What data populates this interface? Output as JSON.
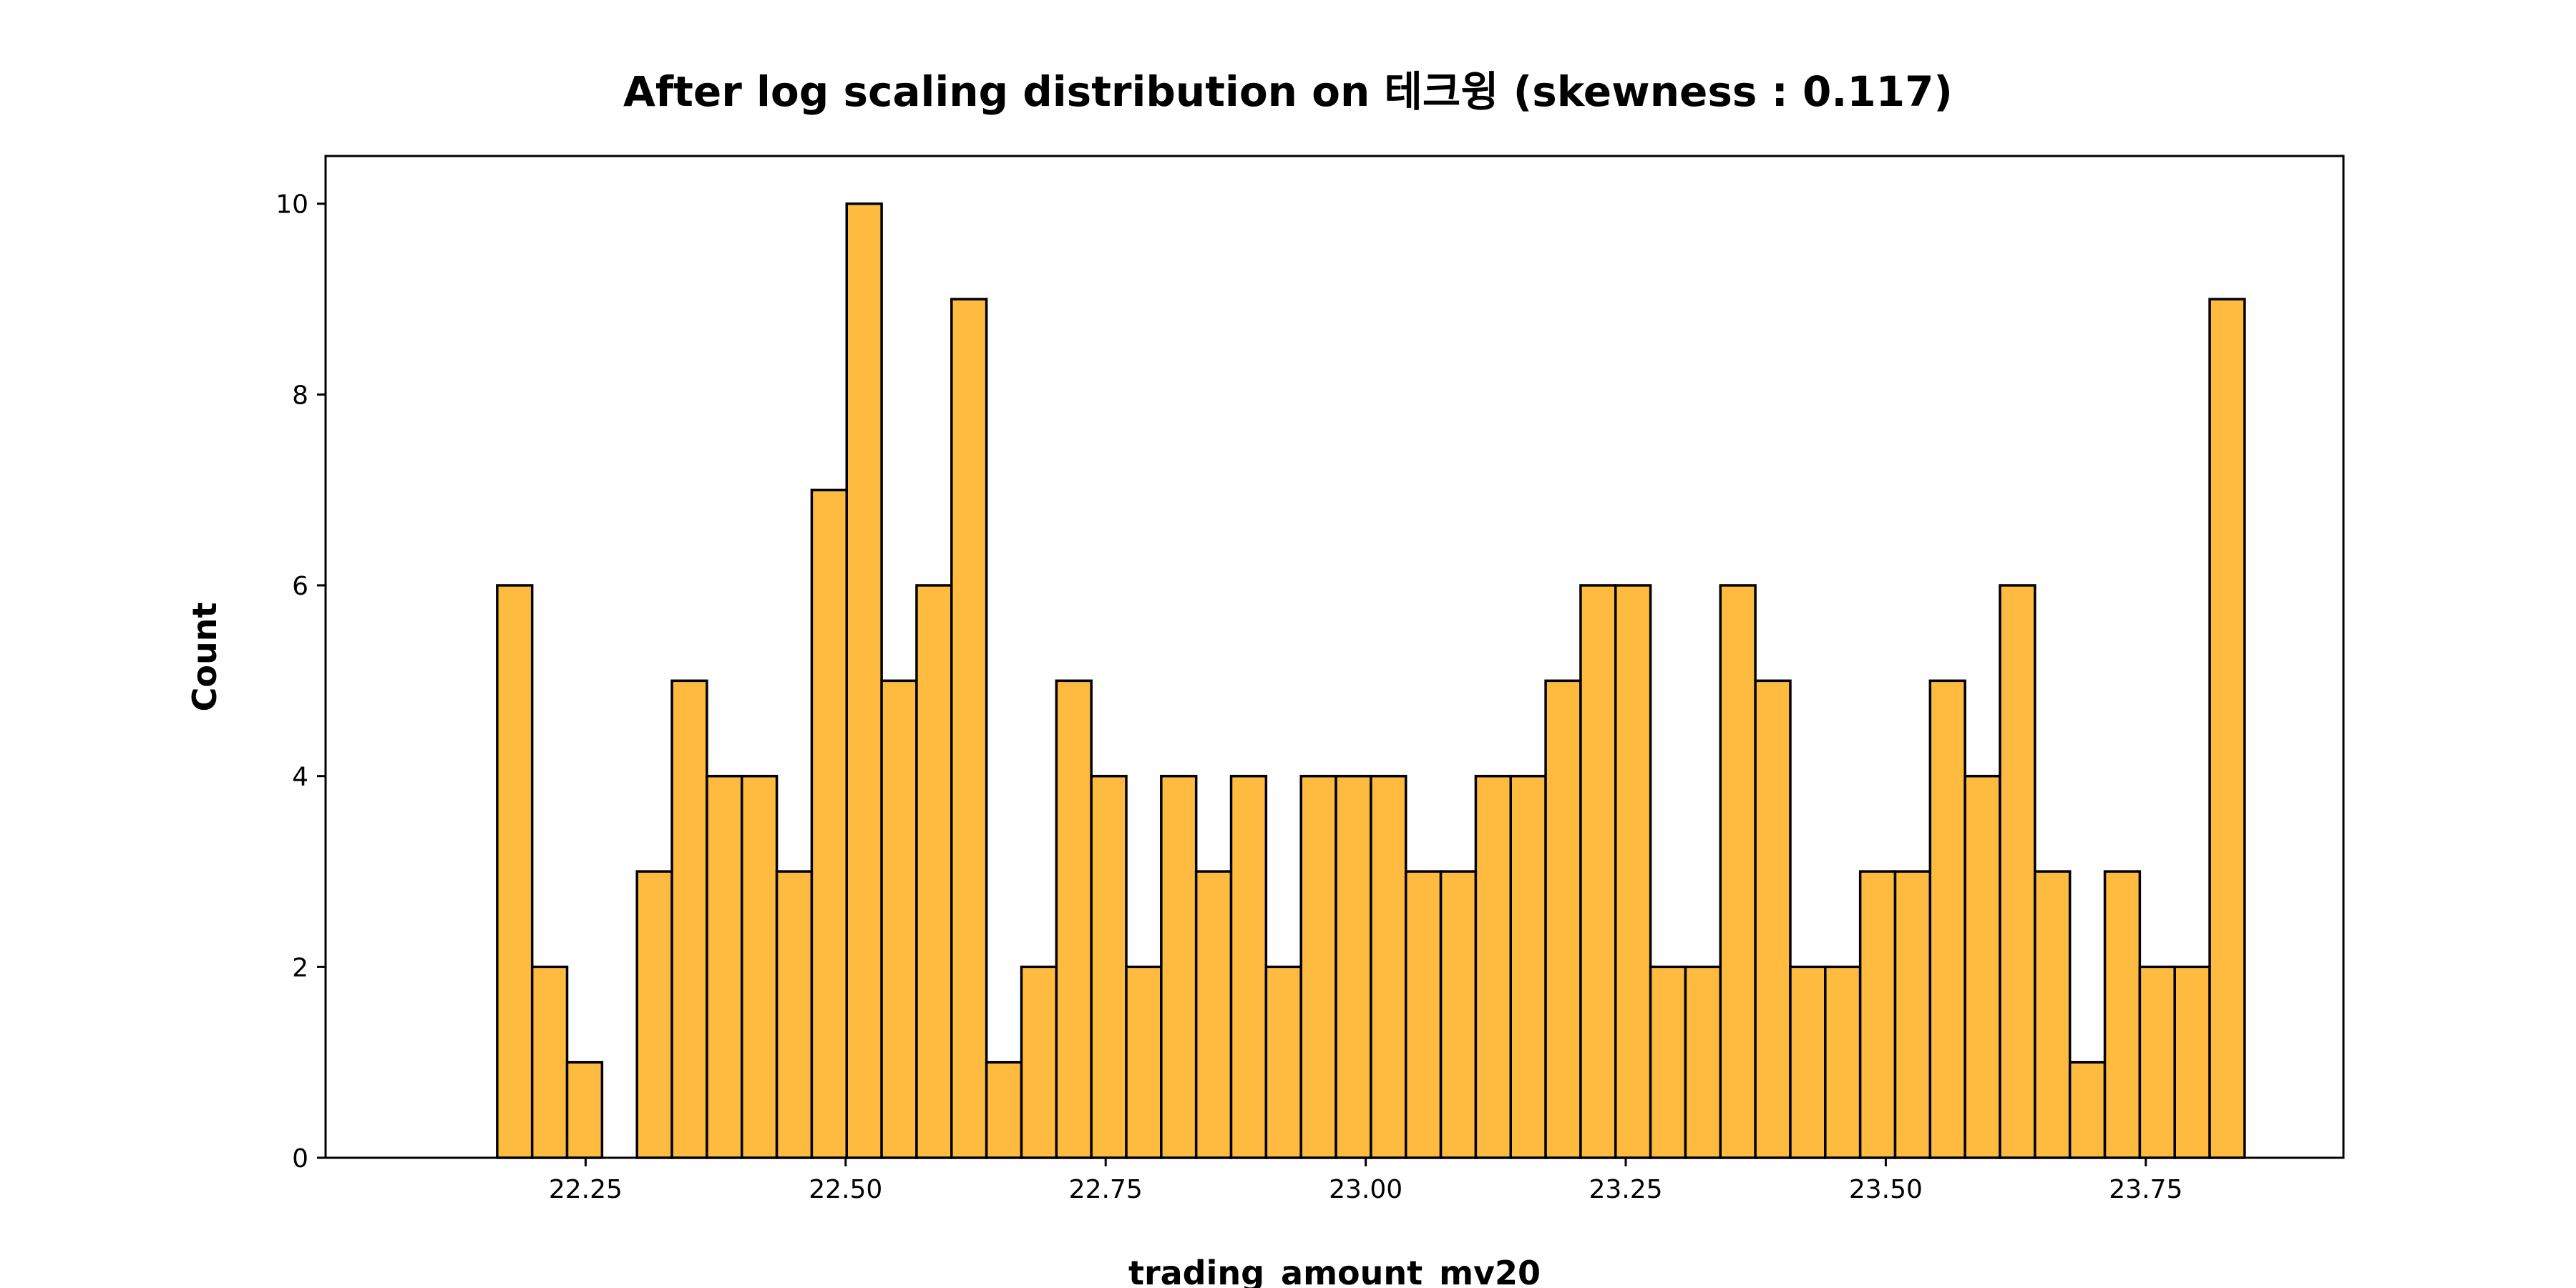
{
  "chart_data": {
    "type": "bar",
    "title": "After log scaling distribution on 테크윙 (skewness : 0.117)",
    "xlabel": "trading_amount_mv20",
    "ylabel": "Count",
    "bin_start": 22.165,
    "bin_width": 0.0336,
    "values": [
      6,
      2,
      1,
      0,
      3,
      5,
      4,
      4,
      3,
      7,
      10,
      5,
      6,
      9,
      1,
      2,
      5,
      4,
      2,
      4,
      3,
      4,
      2,
      4,
      4,
      4,
      3,
      3,
      4,
      4,
      5,
      6,
      6,
      2,
      2,
      6,
      5,
      2,
      2,
      3,
      3,
      5,
      4,
      6,
      3,
      1,
      3,
      2,
      2,
      9
    ],
    "xlim": [
      22.0,
      23.94
    ],
    "ylim": [
      0,
      10.5
    ],
    "xticks": [
      "22.25",
      "22.50",
      "22.75",
      "23.00",
      "23.25",
      "23.50",
      "23.75"
    ],
    "yticks": [
      "0",
      "2",
      "4",
      "6",
      "8",
      "10"
    ],
    "bar_color": "#FFBA40",
    "edge_color": "#000000",
    "grid": false,
    "legend": "none"
  }
}
